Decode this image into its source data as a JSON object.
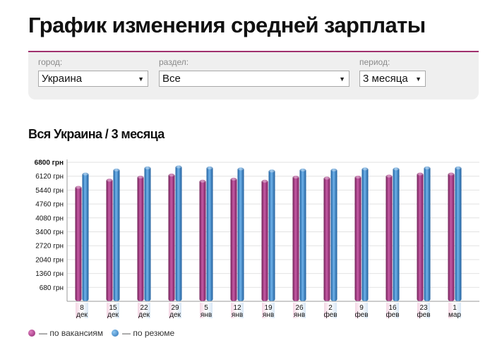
{
  "page": {
    "title": "График изменения средней зарплаты"
  },
  "filters": {
    "city": {
      "label": "город:",
      "value": "Украина"
    },
    "section": {
      "label": "раздел:",
      "value": "Все"
    },
    "period": {
      "label": "период:",
      "value": "3 месяца"
    }
  },
  "chart_title": "Вся Украина / 3 месяца",
  "colors": {
    "vacancies": "#a3307f",
    "resumes": "#3a8ad0",
    "accent": "#a0306e"
  },
  "chart_data": {
    "type": "bar",
    "title": "Вся Украина / 3 месяца",
    "xlabel": "",
    "ylabel": "",
    "ylim": [
      0,
      6800
    ],
    "yticks": [
      "680 грн",
      "1360 грн",
      "2040 грн",
      "2720 грн",
      "3400 грн",
      "4080 грн",
      "4760 грн",
      "5440 грн",
      "6120 грн",
      "6800 грн"
    ],
    "ytick_values": [
      680,
      1360,
      2040,
      2720,
      3400,
      4080,
      4760,
      5440,
      6120,
      6800
    ],
    "categories": [
      {
        "day": "8",
        "month": "дек"
      },
      {
        "day": "15",
        "month": "дек"
      },
      {
        "day": "22",
        "month": "дек"
      },
      {
        "day": "29",
        "month": "дек"
      },
      {
        "day": "5",
        "month": "янв"
      },
      {
        "day": "12",
        "month": "янв"
      },
      {
        "day": "19",
        "month": "янв"
      },
      {
        "day": "26",
        "month": "янв"
      },
      {
        "day": "2",
        "month": "фев"
      },
      {
        "day": "9",
        "month": "фев"
      },
      {
        "day": "16",
        "month": "фев"
      },
      {
        "day": "23",
        "month": "фев"
      },
      {
        "day": "1",
        "month": "мар"
      }
    ],
    "series": [
      {
        "name": "— по вакансиям",
        "key": "vacancies",
        "values": [
          5650,
          6000,
          6150,
          6250,
          5950,
          6050,
          5950,
          6150,
          6100,
          6150,
          6200,
          6300,
          6300
        ]
      },
      {
        "name": "— по резюме",
        "key": "resumes",
        "values": [
          6300,
          6500,
          6600,
          6650,
          6600,
          6550,
          6450,
          6500,
          6500,
          6550,
          6550,
          6600,
          6600
        ]
      }
    ],
    "grid": true,
    "legend": "bottom-left"
  }
}
